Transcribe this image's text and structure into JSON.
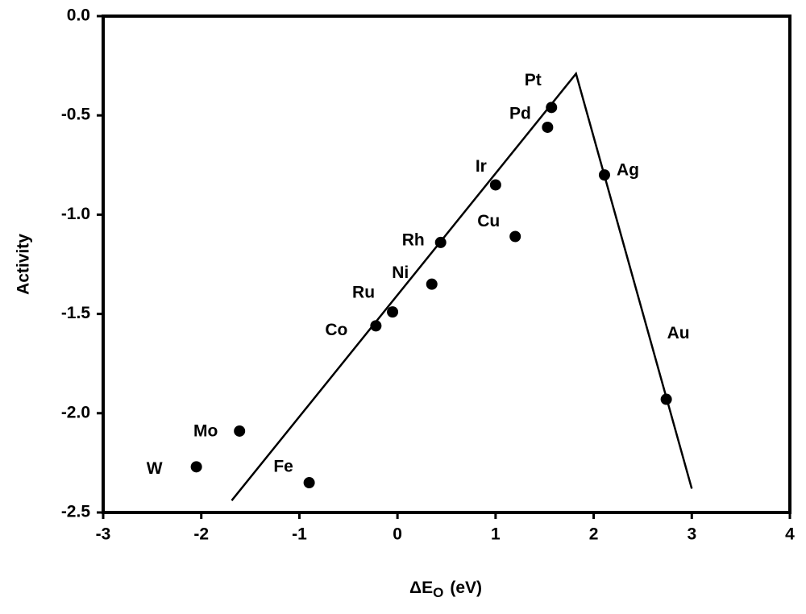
{
  "chart_data": {
    "type": "scatter",
    "xlabel": {
      "main": "ΔE",
      "sub": "O",
      "unit": "(eV)"
    },
    "ylabel": "Activity",
    "xlim": [
      -3,
      4
    ],
    "xticks": [
      -3,
      -2,
      -1,
      0,
      1,
      2,
      3,
      4
    ],
    "ylim": [
      -2.5,
      0
    ],
    "yticks": [
      {
        "value": 0,
        "label": "0.0"
      },
      -0.5,
      {
        "value": -1,
        "label": "-1.0"
      },
      -1.5,
      {
        "value": -2,
        "label": "-2.0"
      },
      -2.5
    ],
    "color": "#000000",
    "points": {
      "labels": [
        "Pt",
        "Pd",
        "Ir",
        "Ag",
        "Cu",
        "Rh",
        "Ni",
        "Ru",
        "Co",
        "Au",
        "Mo",
        "W",
        "Fe"
      ],
      "x": [
        1.57,
        1.53,
        1.0,
        2.11,
        1.2,
        0.44,
        0.35,
        -0.05,
        -0.22,
        2.74,
        -1.61,
        -2.05,
        -0.9
      ],
      "y": [
        -0.46,
        -0.56,
        -0.85,
        -0.8,
        -1.11,
        -1.14,
        -1.35,
        -1.49,
        -1.56,
        -1.93,
        -2.09,
        -2.27,
        -2.35
      ]
    },
    "fit_line": {
      "x": [
        -1.69,
        1.82,
        3.0
      ],
      "y": [
        -2.44,
        -0.29,
        -2.38
      ]
    }
  }
}
